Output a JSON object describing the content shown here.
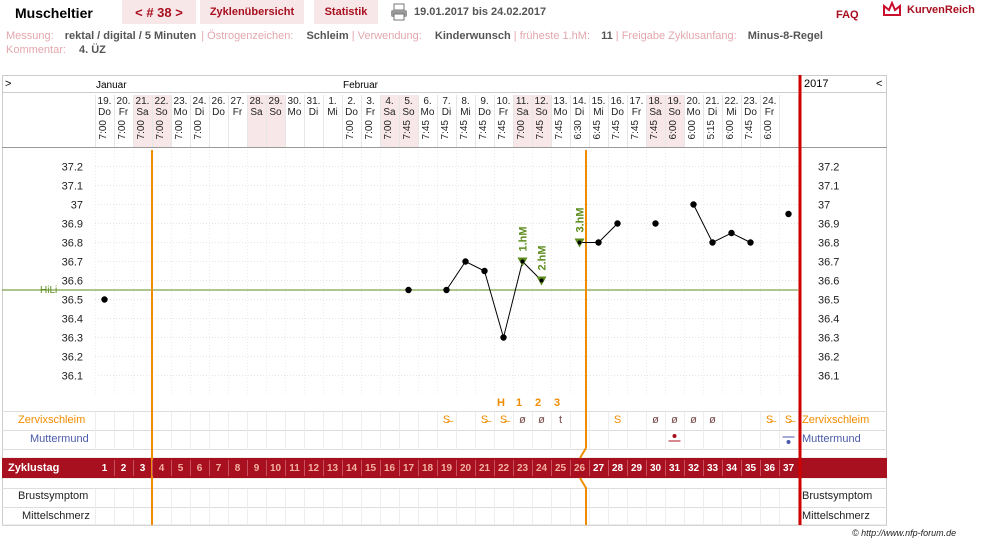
{
  "header": {
    "title": "Muscheltier",
    "cycle_nav": "< # 38 >",
    "tabs": [
      "Zyklenübersicht",
      "Statistik"
    ],
    "date_range": "19.01.2017 bis 24.02.2017",
    "faq": "FAQ",
    "brand": "KurvenReich"
  },
  "meta": {
    "line1": [
      {
        "k": "Messung:",
        "v": "rektal / digital / 5 Minuten"
      },
      {
        "k": "Östrogenzeichen:",
        "v": "Schleim"
      },
      {
        "k": "Verwendung:",
        "v": "Kinderwunsch"
      },
      {
        "k": "früheste 1.hM:",
        "v": "11"
      },
      {
        "k": "Freigabe Zyklusanfang:",
        "v": "Minus-8-Regel"
      }
    ],
    "line2": [
      {
        "k": "Kommentar:",
        "v": "4. ÜZ"
      }
    ]
  },
  "chart_header": {
    "left_arrow": ">",
    "right_arrow": "<",
    "month_jan": "Januar",
    "month_feb": "Februar",
    "year": "2017"
  },
  "days": [
    {
      "d": "19.",
      "w": "Do",
      "t": "7:00",
      "we": false
    },
    {
      "d": "20.",
      "w": "Fr",
      "t": "7:00",
      "we": false
    },
    {
      "d": "21.",
      "w": "Sa",
      "t": "7:00",
      "we": true
    },
    {
      "d": "22.",
      "w": "So",
      "t": "7:00",
      "we": true
    },
    {
      "d": "23.",
      "w": "Mo",
      "t": "7:00",
      "we": false
    },
    {
      "d": "24.",
      "w": "Di",
      "t": "7:00",
      "we": false
    },
    {
      "d": "26.",
      "w": "Do",
      "t": "",
      "we": false
    },
    {
      "d": "27.",
      "w": "Fr",
      "t": "",
      "we": false
    },
    {
      "d": "28.",
      "w": "Sa",
      "t": "",
      "we": true
    },
    {
      "d": "29.",
      "w": "So",
      "t": "",
      "we": true
    },
    {
      "d": "30.",
      "w": "Mo",
      "t": "",
      "we": false
    },
    {
      "d": "31.",
      "w": "Di",
      "t": "",
      "we": false
    },
    {
      "d": "1.",
      "w": "Mi",
      "t": "",
      "we": false
    },
    {
      "d": "2.",
      "w": "Do",
      "t": "7:00",
      "we": false
    },
    {
      "d": "3.",
      "w": "Fr",
      "t": "7:00",
      "we": false
    },
    {
      "d": "4.",
      "w": "Sa",
      "t": "7:00",
      "we": true
    },
    {
      "d": "5.",
      "w": "So",
      "t": "7:45",
      "we": true
    },
    {
      "d": "6.",
      "w": "Mo",
      "t": "7:45",
      "we": false
    },
    {
      "d": "7.",
      "w": "Di",
      "t": "7:45",
      "we": false
    },
    {
      "d": "8.",
      "w": "Mi",
      "t": "7:45",
      "we": false
    },
    {
      "d": "9.",
      "w": "Do",
      "t": "7:45",
      "we": false
    },
    {
      "d": "10.",
      "w": "Fr",
      "t": "7:45",
      "we": false
    },
    {
      "d": "11.",
      "w": "Sa",
      "t": "7:00",
      "we": true
    },
    {
      "d": "12.",
      "w": "So",
      "t": "7:45",
      "we": true
    },
    {
      "d": "13.",
      "w": "Mo",
      "t": "7:45",
      "we": false
    },
    {
      "d": "14.",
      "w": "Di",
      "t": "6:30",
      "we": false
    },
    {
      "d": "15.",
      "w": "Mi",
      "t": "6:45",
      "we": false
    },
    {
      "d": "16.",
      "w": "Do",
      "t": "7:45",
      "we": false
    },
    {
      "d": "17.",
      "w": "Fr",
      "t": "7:45",
      "we": false
    },
    {
      "d": "18.",
      "w": "Sa",
      "t": "7:45",
      "we": true
    },
    {
      "d": "19.",
      "w": "So",
      "t": "6:00",
      "we": true
    },
    {
      "d": "20.",
      "w": "Mo",
      "t": "6:00",
      "we": false
    },
    {
      "d": "21.",
      "w": "Di",
      "t": "5:15",
      "we": false
    },
    {
      "d": "22.",
      "w": "Mi",
      "t": "6:00",
      "we": false
    },
    {
      "d": "23.",
      "w": "Do",
      "t": "7:45",
      "we": false
    },
    {
      "d": "24.",
      "w": "Fr",
      "t": "6:00",
      "we": false
    }
  ],
  "rows": {
    "zervix": "Zervixschleim",
    "muttermund": "Muttermund",
    "zyklustag": "Zyklustag",
    "brust": "Brustsymptom",
    "mittel": "Mittelschmerz"
  },
  "zyklustage": [
    "1",
    "2",
    "3",
    "4",
    "5",
    "6",
    "7",
    "8",
    "9",
    "10",
    "11",
    "12",
    "13",
    "14",
    "15",
    "16",
    "17",
    "18",
    "19",
    "20",
    "21",
    "22",
    "23",
    "24",
    "25",
    "26",
    "27",
    "28",
    "29",
    "30",
    "31",
    "32",
    "33",
    "34",
    "35",
    "36",
    "37"
  ],
  "labels_hm": {
    "H": "H",
    "one": "1",
    "two": "2",
    "three": "3"
  },
  "zervix_symbols": [
    {
      "day": 19,
      "s": "S̶"
    },
    {
      "day": 21,
      "s": "S̶"
    },
    {
      "day": 22,
      "s": "S̶"
    },
    {
      "day": 23,
      "s": "ø"
    },
    {
      "day": 24,
      "s": "ø"
    },
    {
      "day": 25,
      "s": "t"
    },
    {
      "day": 28,
      "s": "S"
    },
    {
      "day": 30,
      "s": "ø"
    },
    {
      "day": 31,
      "s": "ø"
    },
    {
      "day": 32,
      "s": "ø"
    },
    {
      "day": 33,
      "s": "ø"
    },
    {
      "day": 36,
      "s": "S̶"
    },
    {
      "day": 37,
      "s": "S̶"
    }
  ],
  "copyright": "© http://www.nfp-forum.de",
  "colors": {
    "accent": "#a8101f",
    "orange": "#f08c00",
    "green": "#5c8c1c",
    "grid": "#d9d9d9",
    "weekend": "#f7e7e9"
  },
  "chart_data": {
    "type": "line",
    "title": "",
    "ylim": [
      36.0,
      37.3
    ],
    "y_ticks": [
      "37.2",
      "37.1",
      "37",
      "36.9",
      "36.8",
      "36.7",
      "36.6",
      "36.5",
      "36.4",
      "36.3",
      "36.2",
      "36.1"
    ],
    "hili_label": "HiLi",
    "hili_value": 36.55,
    "hm_labels": [
      "1.hM",
      "2.hM",
      "3.hM"
    ],
    "segments": [
      [
        {
          "x": 1,
          "y": 36.5
        }
      ],
      [
        {
          "x": 17,
          "y": 36.55
        }
      ],
      [
        {
          "x": 19,
          "y": 36.55
        },
        {
          "x": 20,
          "y": 36.7
        },
        {
          "x": 21,
          "y": 36.65
        },
        {
          "x": 22,
          "y": 36.3
        },
        {
          "x": 23,
          "y": 36.7
        },
        {
          "x": 24,
          "y": 36.6
        }
      ],
      [
        {
          "x": 26,
          "y": 36.8
        },
        {
          "x": 27,
          "y": 36.8
        },
        {
          "x": 28,
          "y": 36.9
        }
      ],
      [
        {
          "x": 30,
          "y": 36.9
        }
      ],
      [
        {
          "x": 32,
          "y": 37.0
        },
        {
          "x": 33,
          "y": 36.8
        },
        {
          "x": 34,
          "y": 36.85
        },
        {
          "x": 35,
          "y": 36.8
        }
      ],
      [
        {
          "x": 37,
          "y": 36.95
        }
      ]
    ],
    "hm_points": [
      {
        "x": 23,
        "y": 36.7,
        "label": 0
      },
      {
        "x": 24,
        "y": 36.6,
        "label": 1
      },
      {
        "x": 26,
        "y": 36.8,
        "label": 2
      }
    ]
  }
}
